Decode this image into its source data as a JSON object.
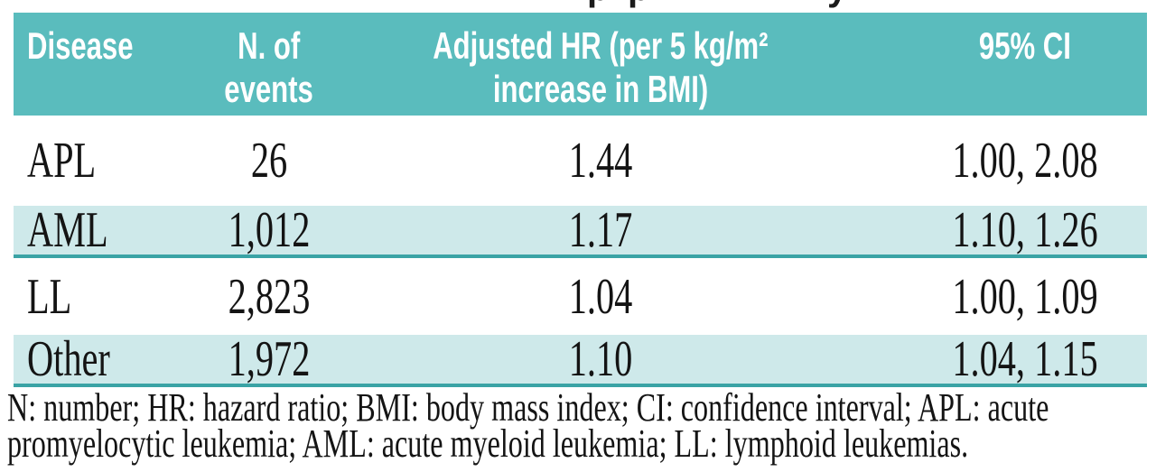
{
  "colors": {
    "header_bg": "#5abcbd",
    "band_bg": "#cee9ea",
    "rule": "#3aa3a5",
    "header_text": "#ffffff",
    "body_text": "#141414"
  },
  "cropped_title": {
    "descender_letters": [
      "p",
      "p",
      "y"
    ]
  },
  "table": {
    "header": {
      "disease": "Disease",
      "events_line1": "N. of",
      "events_line2": "events",
      "hr_line1": "Adjusted HR (per 5 kg/m²",
      "hr_line2": "increase in BMI)",
      "ci": "95% CI"
    },
    "rows": [
      {
        "disease": "APL",
        "events": "26",
        "hr": "1.44",
        "ci": "1.00, 2.08"
      },
      {
        "disease": "AML",
        "events": "1,012",
        "hr": "1.17",
        "ci": "1.10, 1.26"
      },
      {
        "disease": "LL",
        "events": "2,823",
        "hr": "1.04",
        "ci": "1.00, 1.09"
      },
      {
        "disease": "Other",
        "events": "1,972",
        "hr": "1.10",
        "ci": "1.04, 1.15"
      }
    ]
  },
  "footnote": {
    "line1": "N: number; HR: hazard ratio; BMI: body mass index; CI: confidence interval; APL: acute",
    "line2": "promyelocytic leukemia; AML: acute myeloid leukemia; LL: lymphoid leukemias."
  }
}
